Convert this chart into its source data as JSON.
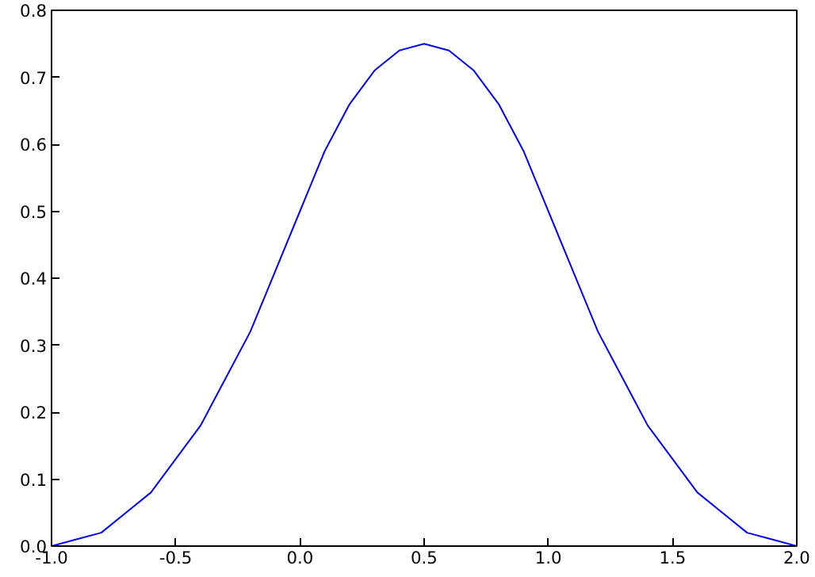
{
  "chart_data": {
    "type": "line",
    "x": [
      -1.0,
      -0.9,
      -0.8,
      -0.7,
      -0.6,
      -0.5,
      -0.4,
      -0.3,
      -0.2,
      -0.1,
      0.0,
      0.1,
      0.2,
      0.3,
      0.4,
      0.5,
      0.6,
      0.7,
      0.8,
      0.9,
      1.0,
      1.1,
      1.2,
      1.3,
      1.4,
      1.5,
      1.6,
      1.7,
      1.8,
      1.9,
      2.0
    ],
    "series": [
      {
        "color": "#0000ff",
        "values": [
          0,
          0.01,
          0.02,
          0.05,
          0.08,
          0.13,
          0.18,
          0.25,
          0.32,
          0.41,
          0.5,
          0.59,
          0.66,
          0.71,
          0.74,
          0.75,
          0.74,
          0.71,
          0.66,
          0.59,
          0.5,
          0.41,
          0.32,
          0.25,
          0.18,
          0.13,
          0.08,
          0.05,
          0.02,
          0.01,
          0
        ]
      }
    ],
    "xlim": [
      -1.0,
      2.0
    ],
    "ylim": [
      0.0,
      0.8
    ],
    "xticks": [
      {
        "value": -1.0,
        "label": "-1.0"
      },
      {
        "value": -0.5,
        "label": "-0.5"
      },
      {
        "value": 0.0,
        "label": "0.0"
      },
      0.5,
      {
        "value": 1.0,
        "label": "1.0"
      },
      1.5,
      {
        "value": 2.0,
        "label": "2.0"
      }
    ],
    "yticks": [
      {
        "value": 0.0,
        "label": "0.0"
      },
      0.1,
      0.2,
      0.3,
      0.4,
      0.5,
      0.6,
      0.7,
      0.8
    ],
    "grid": false,
    "marker": "none",
    "line_style": "solid"
  }
}
